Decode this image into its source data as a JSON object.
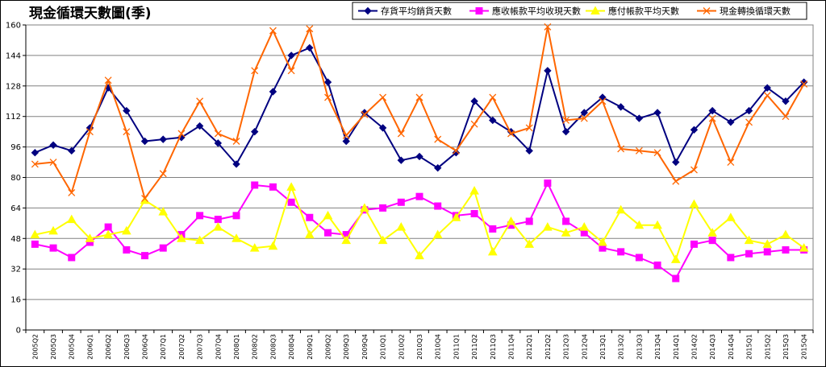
{
  "chart_data": {
    "type": "line",
    "title": "現金循環天數圖(季)",
    "xlabel": "",
    "ylabel": "",
    "ylim": [
      0,
      160
    ],
    "yticks": [
      0,
      16,
      32,
      48,
      64,
      80,
      96,
      112,
      128,
      144,
      160
    ],
    "grid": "horizontal",
    "legend_position": "top-right",
    "categories": [
      "2005Q2",
      "2005Q3",
      "2005Q4",
      "2006Q1",
      "2006Q2",
      "2006Q3",
      "2006Q4",
      "2007Q1",
      "2007Q2",
      "2007Q3",
      "2007Q4",
      "2008Q1",
      "2008Q2",
      "2008Q3",
      "2008Q4",
      "2009Q1",
      "2009Q2",
      "2009Q3",
      "2009Q4",
      "2010Q1",
      "2010Q2",
      "2010Q3",
      "2010Q4",
      "2011Q1",
      "2011Q2",
      "2011Q3",
      "2011Q4",
      "2012Q1",
      "2012Q2",
      "2012Q3",
      "2012Q4",
      "2013Q1",
      "2013Q2",
      "2013Q3",
      "2013Q4",
      "2014Q1",
      "2014Q2",
      "2014Q3",
      "2014Q4",
      "2015Q1",
      "2015Q2",
      "2015Q3",
      "2015Q4"
    ],
    "series": [
      {
        "name": "存貨平均銷貨天數",
        "color": "#000080",
        "marker": "diamond",
        "values": [
          93,
          97,
          94,
          106,
          127,
          115,
          99,
          100,
          101,
          107,
          98,
          87,
          104,
          125,
          144,
          148,
          130,
          99,
          114,
          106,
          89,
          91,
          85,
          93,
          120,
          110,
          104,
          94,
          136,
          104,
          114,
          122,
          117,
          111,
          114,
          88,
          105,
          115,
          109,
          115,
          127,
          120,
          130
        ]
      },
      {
        "name": "應收帳款平均收現天數",
        "color": "#FF00FF",
        "marker": "square",
        "values": [
          45,
          43,
          38,
          46,
          54,
          42,
          39,
          43,
          50,
          60,
          58,
          60,
          76,
          75,
          67,
          59,
          51,
          50,
          63,
          64,
          67,
          70,
          65,
          60,
          61,
          53,
          55,
          57,
          77,
          57,
          51,
          43,
          41,
          38,
          34,
          27,
          45,
          47,
          38,
          40,
          41,
          42,
          42
        ]
      },
      {
        "name": "應付帳款平均天數",
        "color": "#FFFF00",
        "marker": "triangle",
        "values": [
          50,
          52,
          58,
          48,
          50,
          52,
          68,
          62,
          48,
          47,
          54,
          48,
          43,
          44,
          75,
          50,
          60,
          47,
          64,
          47,
          54,
          39,
          50,
          59,
          73,
          41,
          57,
          45,
          54,
          51,
          54,
          46,
          63,
          55,
          55,
          37,
          66,
          51,
          59,
          47,
          45,
          50,
          43
        ]
      },
      {
        "name": "現金轉換循環天數",
        "color": "#FF6600",
        "marker": "cross",
        "values": [
          87,
          88,
          72,
          104,
          131,
          104,
          69,
          82,
          103,
          120,
          103,
          99,
          136,
          157,
          136,
          158,
          122,
          102,
          113,
          122,
          103,
          122,
          100,
          94,
          108,
          122,
          103,
          106,
          159,
          110,
          111,
          120,
          95,
          94,
          93,
          78,
          84,
          111,
          88,
          109,
          123,
          112,
          129
        ]
      }
    ]
  }
}
